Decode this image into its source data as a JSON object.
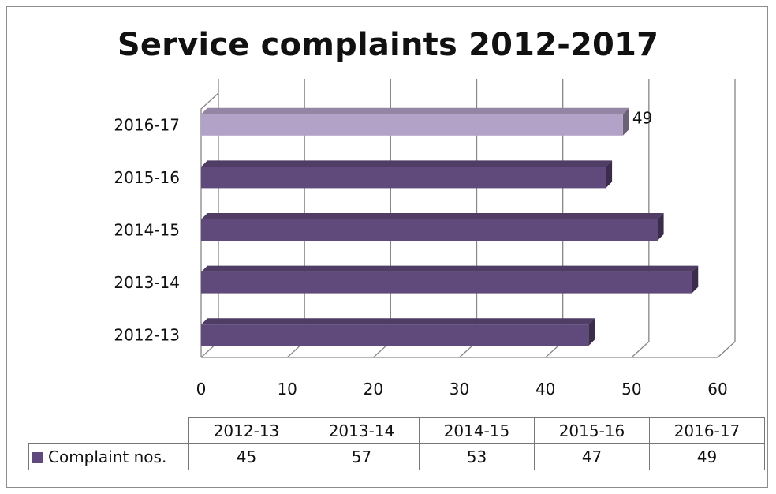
{
  "title": "Service complaints 2012-2017",
  "chart_data": {
    "type": "bar",
    "orientation": "horizontal",
    "title": "Service complaints 2012-2017",
    "categories": [
      "2012-13",
      "2013-14",
      "2014-15",
      "2015-16",
      "2016-17"
    ],
    "series": [
      {
        "name": "Complaint nos.",
        "values": [
          45,
          57,
          53,
          47,
          49
        ]
      }
    ],
    "xlim": [
      0,
      60
    ],
    "x_ticks": [
      "0",
      "10",
      "20",
      "30",
      "40",
      "50",
      "60"
    ],
    "data_labels": [
      {
        "category": "2016-17",
        "text": "49"
      }
    ],
    "highlighted_category": "2016-17",
    "colors": {
      "bar": "#604a7b",
      "bar_highlight": "#b3a2c7",
      "grid": "#868686"
    },
    "grid": true,
    "legend": "data-table-below"
  },
  "data_table": {
    "headers": [
      "2012-13",
      "2013-14",
      "2014-15",
      "2015-16",
      "2016-17"
    ],
    "series_label": "Complaint nos.",
    "values": [
      "45",
      "57",
      "53",
      "47",
      "49"
    ]
  }
}
